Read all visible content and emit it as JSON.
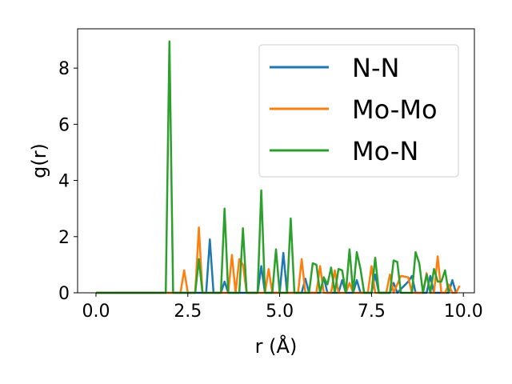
{
  "chart_data": {
    "type": "line",
    "xlabel": "r (Å)",
    "ylabel": "g(r)",
    "xlim": [
      -0.5,
      10.3
    ],
    "ylim": [
      0,
      9.4
    ],
    "x_ticks": [
      0.0,
      2.5,
      5.0,
      7.5,
      10.0
    ],
    "x_tick_labels": [
      "0.0",
      "2.5",
      "5.0",
      "7.5",
      "10.0"
    ],
    "y_ticks": [
      0,
      2,
      4,
      6,
      8
    ],
    "y_tick_labels": [
      "0",
      "2",
      "4",
      "6",
      "8"
    ],
    "grid": false,
    "legend_position": "top-right",
    "series": [
      {
        "name": "N-N",
        "color": "#1f77b4",
        "points": [
          [
            0.0,
            0
          ],
          [
            3.0,
            0
          ],
          [
            3.1,
            1.9
          ],
          [
            3.2,
            0
          ],
          [
            3.4,
            0
          ],
          [
            3.5,
            0.4
          ],
          [
            3.6,
            0
          ],
          [
            4.4,
            0
          ],
          [
            4.5,
            0.95
          ],
          [
            4.6,
            0
          ],
          [
            5.0,
            0
          ],
          [
            5.1,
            1.42
          ],
          [
            5.2,
            0
          ],
          [
            5.6,
            0
          ],
          [
            5.7,
            0.5
          ],
          [
            5.8,
            0
          ],
          [
            6.1,
            0
          ],
          [
            6.2,
            0.55
          ],
          [
            6.3,
            0
          ],
          [
            6.6,
            0
          ],
          [
            6.7,
            0.45
          ],
          [
            6.8,
            0
          ],
          [
            7.0,
            0
          ],
          [
            7.1,
            0.45
          ],
          [
            7.2,
            0
          ],
          [
            7.5,
            0
          ],
          [
            7.6,
            0.65
          ],
          [
            7.7,
            0
          ],
          [
            8.0,
            0
          ],
          [
            8.1,
            0.35
          ],
          [
            8.2,
            0
          ],
          [
            8.5,
            0.4
          ],
          [
            8.6,
            0.6
          ],
          [
            8.7,
            0
          ],
          [
            9.0,
            0
          ],
          [
            9.1,
            0.6
          ],
          [
            9.2,
            0
          ],
          [
            9.6,
            0
          ],
          [
            9.7,
            0.45
          ],
          [
            9.8,
            0
          ]
        ]
      },
      {
        "name": "Mo-Mo",
        "color": "#ff7f0e",
        "points": [
          [
            0.0,
            0
          ],
          [
            2.3,
            0
          ],
          [
            2.4,
            0.8
          ],
          [
            2.5,
            0
          ],
          [
            2.7,
            0
          ],
          [
            2.8,
            2.33
          ],
          [
            2.9,
            0
          ],
          [
            3.6,
            0
          ],
          [
            3.7,
            1.35
          ],
          [
            3.8,
            0
          ],
          [
            3.9,
            1.2
          ],
          [
            4.0,
            1.0
          ],
          [
            4.1,
            0
          ],
          [
            4.6,
            0
          ],
          [
            4.7,
            0.85
          ],
          [
            4.8,
            0
          ],
          [
            5.5,
            0
          ],
          [
            5.6,
            1.2
          ],
          [
            5.7,
            0
          ],
          [
            6.0,
            0
          ],
          [
            6.1,
            0.95
          ],
          [
            6.2,
            0
          ],
          [
            6.4,
            0
          ],
          [
            6.5,
            0.8
          ],
          [
            6.6,
            0
          ],
          [
            6.8,
            0
          ],
          [
            6.9,
            0.35
          ],
          [
            7.0,
            0
          ],
          [
            7.4,
            0
          ],
          [
            7.5,
            0.95
          ],
          [
            7.6,
            0
          ],
          [
            7.9,
            0
          ],
          [
            8.0,
            0.65
          ],
          [
            8.1,
            0
          ],
          [
            8.3,
            0.6
          ],
          [
            8.5,
            0.55
          ],
          [
            8.6,
            0
          ],
          [
            8.9,
            0
          ],
          [
            9.0,
            0.7
          ],
          [
            9.1,
            0
          ],
          [
            9.2,
            0
          ],
          [
            9.3,
            1.3
          ],
          [
            9.4,
            0
          ],
          [
            9.5,
            0
          ],
          [
            9.6,
            0.3
          ],
          [
            9.7,
            0
          ],
          [
            9.8,
            0
          ],
          [
            9.9,
            0.25
          ]
        ]
      },
      {
        "name": "Mo-N",
        "color": "#2ca02c",
        "points": [
          [
            0.0,
            0
          ],
          [
            1.9,
            0
          ],
          [
            2.0,
            8.95
          ],
          [
            2.1,
            0
          ],
          [
            2.7,
            0
          ],
          [
            2.8,
            1.2
          ],
          [
            2.9,
            0
          ],
          [
            3.4,
            0
          ],
          [
            3.5,
            3.0
          ],
          [
            3.6,
            0
          ],
          [
            3.9,
            0
          ],
          [
            4.0,
            2.3
          ],
          [
            4.1,
            0
          ],
          [
            4.4,
            0
          ],
          [
            4.5,
            3.65
          ],
          [
            4.6,
            0
          ],
          [
            4.8,
            0
          ],
          [
            4.9,
            1.55
          ],
          [
            5.0,
            0
          ],
          [
            5.2,
            0
          ],
          [
            5.3,
            2.65
          ],
          [
            5.4,
            0
          ],
          [
            5.8,
            0
          ],
          [
            5.9,
            1.05
          ],
          [
            6.0,
            1.0
          ],
          [
            6.1,
            0
          ],
          [
            6.2,
            0.55
          ],
          [
            6.3,
            0.3
          ],
          [
            6.4,
            0.9
          ],
          [
            6.5,
            0
          ],
          [
            6.6,
            0.85
          ],
          [
            6.7,
            0.8
          ],
          [
            6.8,
            0
          ],
          [
            6.9,
            1.55
          ],
          [
            7.0,
            0
          ],
          [
            7.1,
            1.45
          ],
          [
            7.2,
            0.85
          ],
          [
            7.3,
            0
          ],
          [
            7.5,
            0
          ],
          [
            7.6,
            1.25
          ],
          [
            7.7,
            0
          ],
          [
            8.0,
            0
          ],
          [
            8.1,
            1.15
          ],
          [
            8.2,
            1.1
          ],
          [
            8.3,
            0
          ],
          [
            8.6,
            0
          ],
          [
            8.7,
            1.45
          ],
          [
            8.8,
            1.05
          ],
          [
            8.9,
            0
          ],
          [
            9.0,
            0.65
          ],
          [
            9.1,
            0
          ],
          [
            9.2,
            0.85
          ],
          [
            9.3,
            0.4
          ],
          [
            9.4,
            0.4
          ],
          [
            9.5,
            0.8
          ],
          [
            9.6,
            0
          ]
        ]
      }
    ]
  }
}
